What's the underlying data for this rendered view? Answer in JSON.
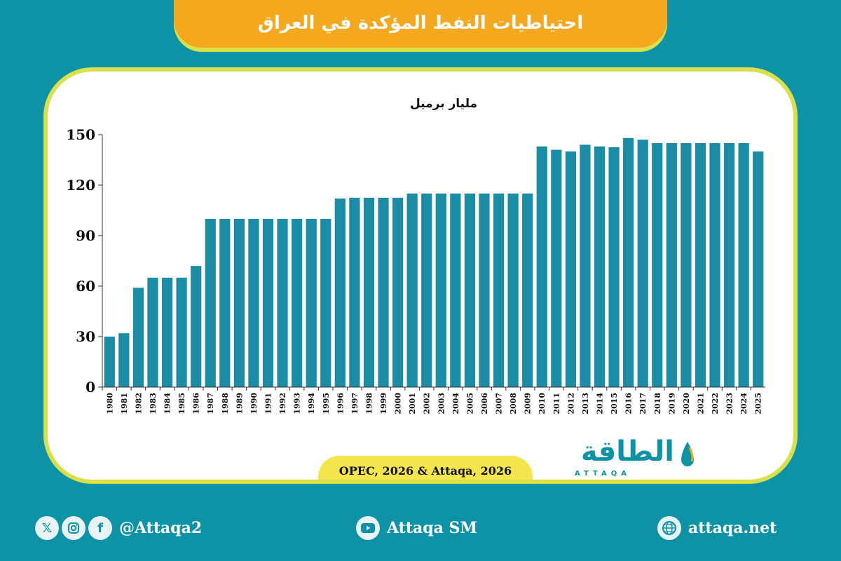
{
  "header": {
    "title": "احتياطيات النفط المؤكدة في العراق"
  },
  "chart_data": {
    "type": "bar",
    "unit_label": "مليار برميل",
    "categories": [
      "1980",
      "1981",
      "1982",
      "1983",
      "1984",
      "1985",
      "1986",
      "1987",
      "1988",
      "1989",
      "1990",
      "1991",
      "1992",
      "1993",
      "1994",
      "1995",
      "1996",
      "1997",
      "1998",
      "1999",
      "2000",
      "2001",
      "2002",
      "2003",
      "2004",
      "2005",
      "2006",
      "2007",
      "2008",
      "2009",
      "2010",
      "2011",
      "2012",
      "2013",
      "2014",
      "2015",
      "2016",
      "2017",
      "2018",
      "2019",
      "2020",
      "2021",
      "2022",
      "2023",
      "2024",
      "2025"
    ],
    "values": [
      30,
      32,
      59,
      65,
      65,
      65,
      72,
      100,
      100,
      100,
      100,
      100,
      100,
      100,
      100,
      100,
      112,
      112.5,
      112.5,
      112.5,
      112.5,
      115,
      115,
      115,
      115,
      115,
      115,
      115,
      115,
      115,
      143,
      141,
      140,
      144,
      143,
      142.5,
      148,
      147,
      145,
      145,
      145,
      145,
      145,
      145,
      145,
      140
    ],
    "yticks": [
      0,
      30,
      60,
      90,
      120,
      150
    ],
    "ylim": [
      0,
      150
    ],
    "bar_color": "#1a8ca3",
    "grid": false
  },
  "source": {
    "text": "OPEC, 2026 & Attaqa, 2026"
  },
  "logo": {
    "arabic": "الطاقة",
    "english": "ATTAQA"
  },
  "footer": {
    "handle": "@Attaqa2",
    "youtube": "Attaqa SM",
    "website": "attaqa.net",
    "icons": [
      "x-icon",
      "instagram-icon",
      "facebook-icon",
      "youtube-icon",
      "globe-icon"
    ]
  },
  "colors": {
    "background": "#0e93a6",
    "banner": "#f4a81d",
    "accent": "#d9e04a",
    "source_pill": "#f4e54c"
  }
}
